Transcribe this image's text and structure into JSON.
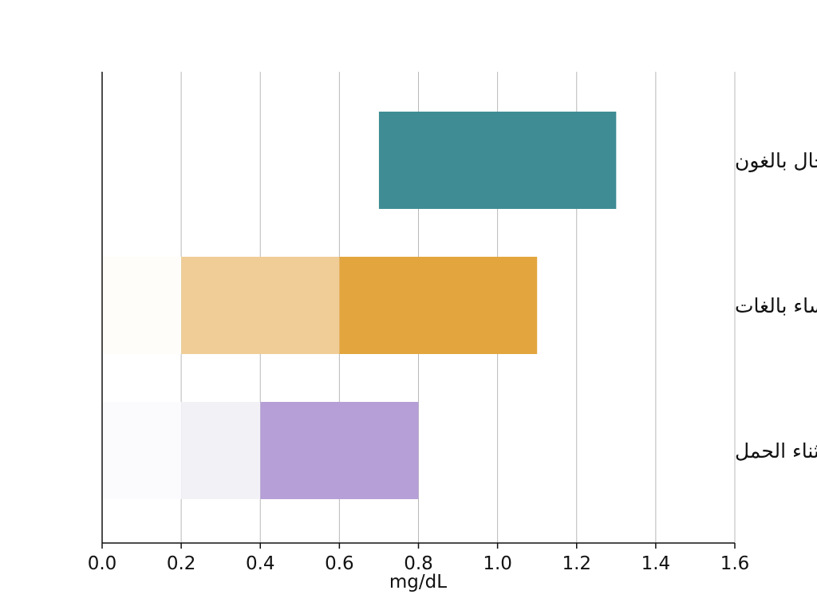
{
  "chart_data": {
    "type": "bar",
    "orientation": "horizontal",
    "xlabel": "mg/dL",
    "xlim": [
      0,
      1.6
    ],
    "xticks": [
      0.0,
      0.2,
      0.4,
      0.6,
      0.8,
      1.0,
      1.2,
      1.4,
      1.6
    ],
    "xtick_labels": [
      "0.0",
      "0.2",
      "0.4",
      "0.6",
      "0.8",
      "1.0",
      "1.2",
      "1.4",
      "1.6"
    ],
    "grid": "vertical",
    "categories": [
      "رجال بالغون",
      "نساء بالغات",
      "أثناء الحمل"
    ],
    "bars": [
      {
        "category": "رجال بالغون",
        "segments": [
          {
            "start": 0.7,
            "end": 1.3,
            "color": "#3f8c95"
          }
        ]
      },
      {
        "category": "نساء بالغات",
        "segments": [
          {
            "start": 0.0,
            "end": 0.2,
            "color": "#fefdf9"
          },
          {
            "start": 0.2,
            "end": 0.6,
            "color": "#f0cd97"
          },
          {
            "start": 0.6,
            "end": 1.1,
            "color": "#e3a63e"
          }
        ]
      },
      {
        "category": "أثناء الحمل",
        "segments": [
          {
            "start": 0.0,
            "end": 0.2,
            "color": "#fbfbfd"
          },
          {
            "start": 0.2,
            "end": 0.4,
            "color": "#f2f1f6"
          },
          {
            "start": 0.4,
            "end": 0.8,
            "color": "#b69fd6"
          }
        ]
      }
    ]
  }
}
